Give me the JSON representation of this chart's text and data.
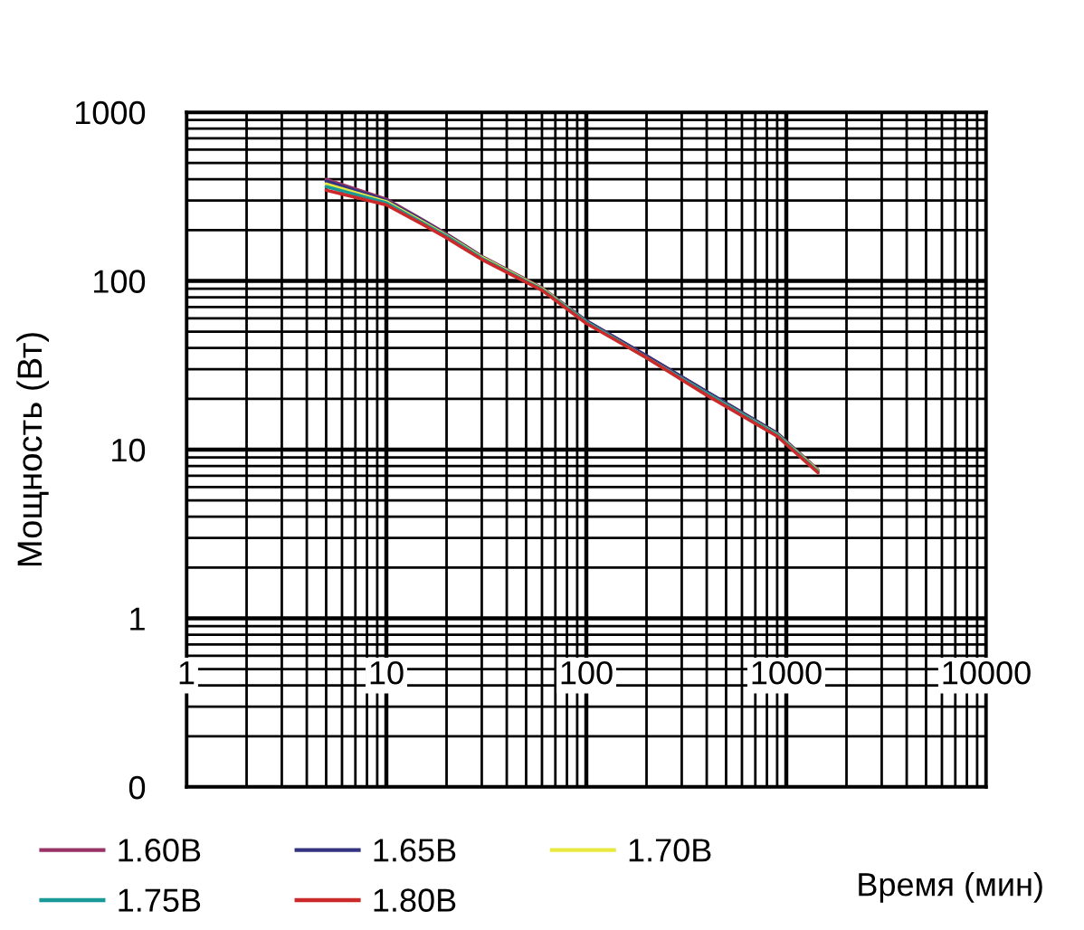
{
  "chart_data": {
    "type": "line",
    "xlabel": "Время (мин)",
    "ylabel": "Мощность (Вт)",
    "log": "xy",
    "grid": true,
    "legend": "bottom",
    "line_style": "solid",
    "marker": "none",
    "xlim": [
      1,
      10000
    ],
    "xticks": [
      1,
      10,
      100,
      1000,
      10000
    ],
    "ylim": [
      0.1,
      1000
    ],
    "yticks": [
      {
        "value": 0.1,
        "label": "0"
      },
      1,
      10,
      100,
      1000
    ],
    "x": [
      5,
      10,
      15,
      20,
      30,
      60,
      100,
      200,
      400,
      900,
      1440
    ],
    "series": [
      {
        "name": "1.60В",
        "color": "#993366",
        "values": [
          400,
          305,
          232,
          190,
          140,
          91,
          58,
          36,
          22,
          12.5,
          7.6
        ]
      },
      {
        "name": "1.65В",
        "color": "#333380",
        "values": [
          390,
          300,
          230,
          188,
          139,
          90,
          58,
          36,
          22,
          12.5,
          7.5
        ]
      },
      {
        "name": "1.70В",
        "color": "#e8e840",
        "values": [
          375,
          295,
          226,
          186,
          138,
          90,
          57,
          35,
          21.5,
          12.3,
          7.5
        ]
      },
      {
        "name": "1.75В",
        "color": "#1a9999",
        "values": [
          362,
          290,
          222,
          184,
          136,
          89,
          57,
          35,
          21.5,
          12.2,
          7.4
        ]
      },
      {
        "name": "1.80В",
        "color": "#cc2a2a",
        "values": [
          345,
          282,
          218,
          180,
          134,
          88,
          56,
          35,
          21,
          12,
          7.3
        ]
      }
    ]
  }
}
